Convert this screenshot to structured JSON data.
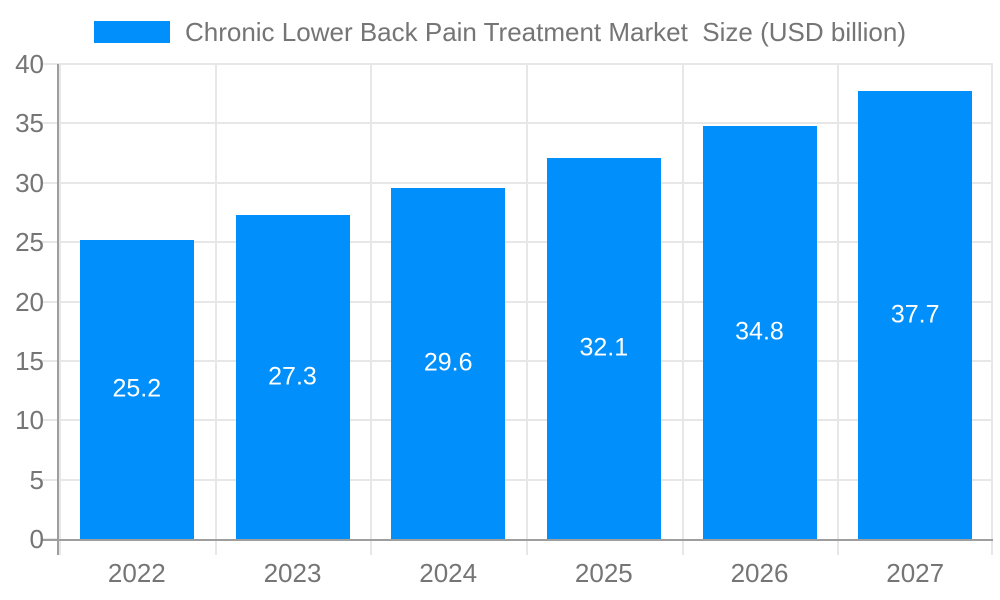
{
  "chart_data": {
    "type": "bar",
    "title": "Chronic Lower Back Pain Treatment Market  Size (USD billion)",
    "categories": [
      "2022",
      "2023",
      "2024",
      "2025",
      "2026",
      "2027"
    ],
    "values": [
      25.2,
      27.3,
      29.6,
      32.1,
      34.8,
      37.7
    ],
    "value_labels": [
      "25.2",
      "27.3",
      "29.6",
      "32.1",
      "34.8",
      "37.7"
    ],
    "xlabel": "",
    "ylabel": "",
    "ylim": [
      0,
      40
    ],
    "yticks": [
      0,
      5,
      10,
      15,
      20,
      25,
      30,
      35,
      40
    ],
    "grid": true,
    "legend_position": "top",
    "colors": {
      "bar": "#008FFB",
      "grid": "#e7e7e7",
      "axis": "#9e9e9e",
      "tick_label": "#757575",
      "value_label": "#ffffff",
      "legend_text": "#757575"
    }
  }
}
